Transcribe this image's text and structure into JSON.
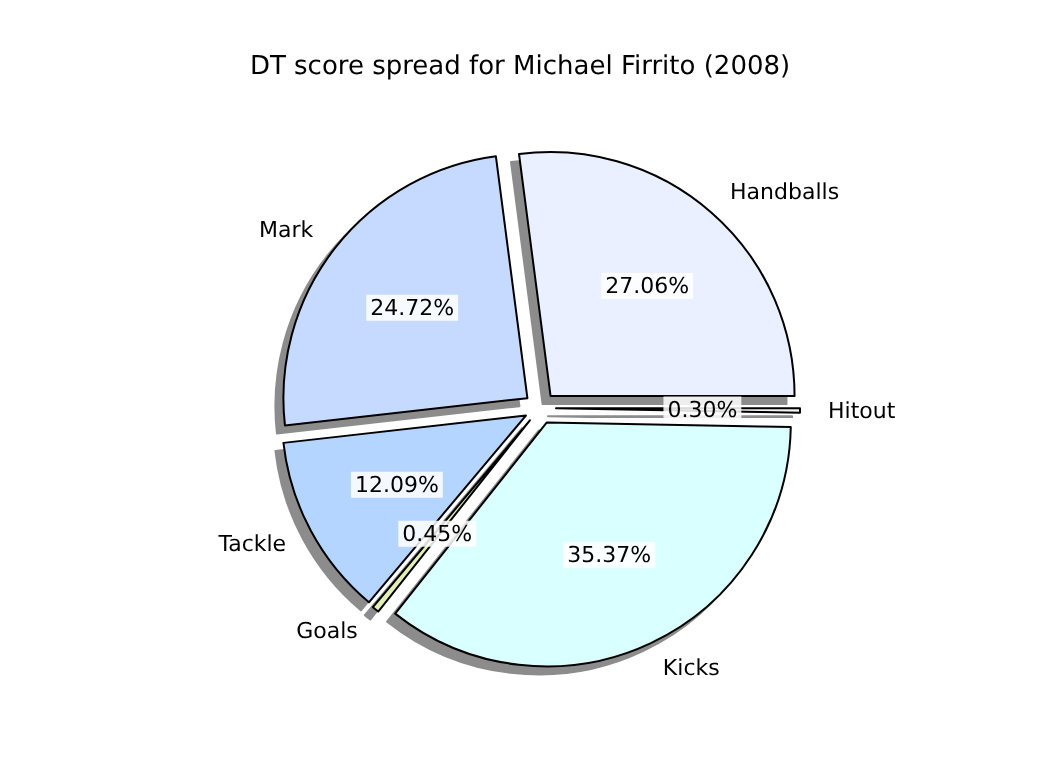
{
  "chart_data": {
    "type": "pie",
    "title": "DT score spread for Michael Firrito (2008)",
    "categories": [
      "Handballs",
      "Mark",
      "Tackle",
      "Goals",
      "Kicks",
      "Hitout"
    ],
    "values": [
      27.06,
      24.72,
      12.09,
      0.45,
      35.37,
      0.3
    ],
    "value_labels": [
      "27.06%",
      "24.72%",
      "12.09%",
      "0.45%",
      "35.37%",
      "0.30%"
    ],
    "colors": [
      "#eaf0ff",
      "#c6d9ff",
      "#b4d5ff",
      "#e2f0b4",
      "#d9ffff",
      "#f2f2f2"
    ],
    "legend": false
  }
}
